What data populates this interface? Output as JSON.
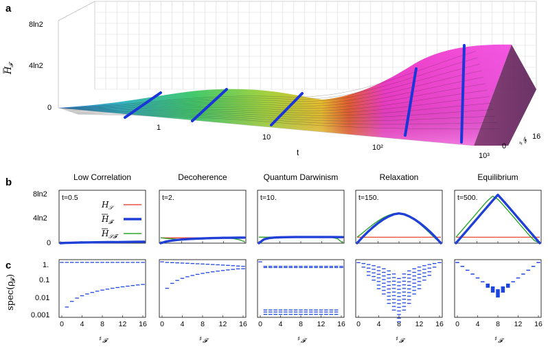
{
  "panel_labels": [
    "a",
    "b",
    "c"
  ],
  "chart_data": [
    {
      "type": "surface",
      "panel": "a",
      "zlabel_base": "H",
      "zlabel_sub": "𝓕",
      "z_ticks": [
        "8ln2",
        "4ln2",
        "0"
      ],
      "z_tick_values": [
        8,
        4,
        0
      ],
      "xlabel": "t",
      "x_ticks": [
        "1",
        "10",
        "10²",
        "10³"
      ],
      "x_tick_values": [
        1,
        10,
        100,
        1000
      ],
      "ylabel_base": "♯",
      "ylabel_sub": "𝓕",
      "y_ticks": [
        "0",
        "16"
      ],
      "y_tick_values": [
        0,
        16
      ],
      "highlight_times": [
        0.5,
        2,
        10,
        150,
        500
      ],
      "peak_value_ln2": 8
    },
    {
      "type": "line",
      "panel": "b",
      "ylabel": "",
      "y_ticks": [
        "8ln2",
        "4ln2",
        "0"
      ],
      "y_tick_values": [
        8,
        4,
        0
      ],
      "ylim": [
        0,
        8
      ],
      "xlim": [
        0,
        16
      ],
      "legend": [
        {
          "label": "H_S",
          "text": "H",
          "sub": "𝒮",
          "color": "#e8321f"
        },
        {
          "label": "H̄_F",
          "text": "H",
          "sub": "𝓕",
          "color": "#1f3fd6",
          "bar": true
        },
        {
          "label": "H̄_SF",
          "text": "H",
          "sub": "𝒮𝓕",
          "color": "#2aa52a",
          "bar": true
        }
      ],
      "panels": [
        {
          "title": "Low Correlation",
          "time_label": "t=0.5",
          "H_S": 0.12,
          "H_F": [
            0,
            0.04,
            0.07,
            0.09,
            0.11,
            0.12,
            0.13,
            0.14,
            0.15,
            0.16,
            0.17,
            0.18,
            0.19,
            0.2,
            0.21,
            0.22,
            0.23
          ],
          "H_SF": [
            0.12,
            0.13,
            0.14,
            0.15,
            0.16,
            0.17,
            0.18,
            0.19,
            0.2,
            0.21,
            0.22,
            0.23,
            0.24,
            0.25,
            0.26,
            0.27,
            0.28
          ]
        },
        {
          "title": "Decoherence",
          "time_label": "t=2.",
          "H_S": 0.85,
          "H_F": [
            0,
            0.25,
            0.4,
            0.5,
            0.58,
            0.64,
            0.69,
            0.73,
            0.76,
            0.79,
            0.81,
            0.83,
            0.85,
            0.86,
            0.87,
            0.88,
            0.89
          ],
          "H_SF": [
            0.85,
            0.76,
            0.7,
            0.65,
            0.62,
            0.6,
            0.6,
            0.62,
            0.65,
            0.7,
            0.76,
            0.8,
            0.82,
            0.8,
            0.72,
            0.55,
            0.25
          ]
        },
        {
          "title": "Quantum Darwinism",
          "time_label": "t=10.",
          "H_S": 0.95,
          "H_F": [
            0,
            0.62,
            0.82,
            0.9,
            0.93,
            0.95,
            0.96,
            0.97,
            0.97,
            0.97,
            0.97,
            0.97,
            0.97,
            0.97,
            0.97,
            0.96,
            0.96
          ],
          "H_SF": [
            0.95,
            0.95,
            0.95,
            0.96,
            0.96,
            0.96,
            0.96,
            0.96,
            0.96,
            0.96,
            0.96,
            0.96,
            0.95,
            0.94,
            0.9,
            0.72,
            0.05
          ]
        },
        {
          "title": "Relaxation",
          "time_label": "t=150.",
          "H_S": 0.95,
          "H_F": [
            0,
            0.92,
            1.76,
            2.52,
            3.2,
            3.78,
            4.25,
            4.6,
            4.75,
            4.6,
            4.25,
            3.78,
            3.2,
            2.52,
            1.76,
            0.92,
            0.0
          ],
          "H_SF": [
            0.95,
            1.6,
            2.3,
            2.95,
            3.55,
            4.05,
            4.45,
            4.72,
            4.82,
            4.65,
            4.25,
            3.7,
            3.05,
            2.3,
            1.5,
            0.7,
            0.0
          ]
        },
        {
          "title": "Equilibrium",
          "time_label": "t=500.",
          "H_S": 0.95,
          "H_F": [
            0,
            0.97,
            1.94,
            2.91,
            3.88,
            4.85,
            5.82,
            6.79,
            7.7,
            6.79,
            5.82,
            4.85,
            3.88,
            2.91,
            1.94,
            0.97,
            0.0
          ],
          "H_SF": [
            0.95,
            1.92,
            2.89,
            3.86,
            4.83,
            5.8,
            6.77,
            7.5,
            7.0,
            6.1,
            5.13,
            4.16,
            3.19,
            2.22,
            1.25,
            0.4,
            0.0
          ]
        }
      ]
    },
    {
      "type": "spectrum",
      "panel": "c",
      "ylabel": "spec(ρ_F)",
      "ylabel_base": "spec(ρ",
      "ylabel_sub": "𝓕",
      "y_ticks": [
        "1.",
        "0.1",
        "0.01",
        "0.001"
      ],
      "y_tick_values": [
        1,
        0.1,
        0.01,
        0.001
      ],
      "ylim_log10": [
        -3.2,
        0.12
      ],
      "xlabel": "♯F",
      "xlabel_base": "♯",
      "xlabel_sub": "𝓕",
      "x_ticks": [
        "0",
        "4",
        "8",
        "12",
        "16"
      ],
      "x_tick_values": [
        0,
        4,
        8,
        12,
        16
      ],
      "xlim": [
        0,
        16
      ]
    }
  ]
}
